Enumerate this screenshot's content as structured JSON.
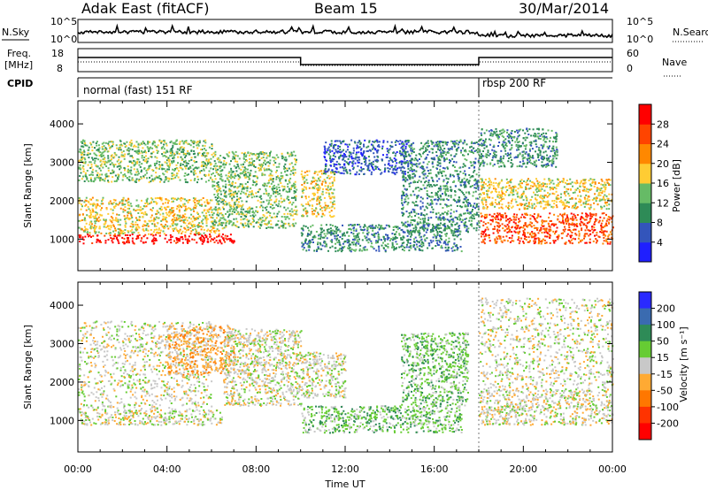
{
  "header": {
    "radar": "Adak East (fitACF)",
    "beam": "Beam 15",
    "date": "30/Mar/2014"
  },
  "noise_panel": {
    "left_label": "N.Sky",
    "left_ticks": [
      "10^5",
      "10^0"
    ],
    "right_label": "N.Search",
    "right_ticks": [
      "10^5",
      "10^0"
    ]
  },
  "freq_panel": {
    "left_label_1": "Freq.",
    "left_label_2": "[MHz]",
    "left_ticks": [
      "18",
      "8"
    ],
    "right_label": "Nave",
    "right_ticks": [
      "60",
      "0"
    ]
  },
  "cpid": {
    "label": "CPID",
    "segments": [
      {
        "text": "normal (fast) 151 RF",
        "start_hour": 0
      },
      {
        "text": "rbsp 200 RF",
        "start_hour": 18
      }
    ]
  },
  "x_axis": {
    "label": "Time UT",
    "ticks": [
      "00:00",
      "04:00",
      "08:00",
      "12:00",
      "16:00",
      "20:00",
      "00:00"
    ]
  },
  "power_colorbar": {
    "label": "Power [dB]",
    "ticks": [
      "4",
      "8",
      "12",
      "16",
      "20",
      "24",
      "28"
    ],
    "colors": [
      "#1f1fff",
      "#3355bb",
      "#2e8b57",
      "#66bb66",
      "#ffcc33",
      "#ff8800",
      "#ff4400",
      "#ff0000"
    ]
  },
  "velocity_colorbar": {
    "label": "Velocity [m s⁻¹]",
    "ticks": [
      "200",
      "100",
      "50",
      "15",
      "-15",
      "-50",
      "-100",
      "-200"
    ],
    "colors": [
      "#2a2aff",
      "#3a6bb0",
      "#2e8b57",
      "#66cc33",
      "#c8c8c8",
      "#ffaa33",
      "#ff7700",
      "#ff3300",
      "#ff0000"
    ]
  },
  "chart_data": [
    {
      "type": "heatmap",
      "title": "",
      "xlabel": "",
      "ylabel": "Slant Range [km]",
      "xlim": [
        0,
        24
      ],
      "ylim": [
        180,
        4600
      ],
      "yticks": [
        "1000",
        "2000",
        "3000",
        "4000"
      ],
      "scatter_bands": [
        {
          "name": "",
          "t0": 0,
          "t1": 7,
          "r0": 900,
          "r1": 1150,
          "level": 7
        },
        {
          "name": "",
          "t0": 0,
          "t1": 6.5,
          "r0": 1150,
          "r1": 1500,
          "level": 4
        },
        {
          "name": "",
          "t0": 0,
          "t1": 6,
          "r0": 1500,
          "r1": 2100,
          "level": 4
        },
        {
          "name": "",
          "t0": 0,
          "t1": 6,
          "r0": 2500,
          "r1": 3600,
          "level": 3
        },
        {
          "name": "",
          "t0": 6,
          "t1": 9.8,
          "r0": 1300,
          "r1": 3300,
          "level": 3
        },
        {
          "name": "",
          "t0": 10,
          "t1": 11.5,
          "r0": 1600,
          "r1": 2800,
          "level": 4
        },
        {
          "name": "",
          "t0": 11,
          "t1": 15,
          "r0": 2700,
          "r1": 3600,
          "level": 1
        },
        {
          "name": "",
          "t0": 10,
          "t1": 17.2,
          "r0": 700,
          "r1": 1400,
          "level": 2
        },
        {
          "name": "",
          "t0": 14.5,
          "t1": 18,
          "r0": 1200,
          "r1": 3600,
          "level": 2
        },
        {
          "name": "",
          "t0": 18,
          "t1": 24,
          "r0": 900,
          "r1": 1700,
          "level": 6
        },
        {
          "name": "",
          "t0": 18,
          "t1": 24,
          "r0": 1800,
          "r1": 2600,
          "level": 4
        },
        {
          "name": "",
          "t0": 18,
          "t1": 21.5,
          "r0": 2900,
          "r1": 3900,
          "level": 2
        }
      ]
    },
    {
      "type": "heatmap",
      "title": "",
      "xlabel": "Time UT",
      "ylabel": "Slant Range [km]",
      "xlim": [
        0,
        24
      ],
      "ylim": [
        180,
        4600
      ],
      "yticks": [
        "1000",
        "2000",
        "3000",
        "4000"
      ],
      "scatter_bands": [
        {
          "name": "",
          "t0": 0,
          "t1": 6.5,
          "r0": 900,
          "r1": 1300,
          "level": 4
        },
        {
          "name": "",
          "t0": 0,
          "t1": 6,
          "r0": 1300,
          "r1": 3600,
          "level": 4
        },
        {
          "name": "",
          "t0": 4,
          "t1": 7,
          "r0": 2200,
          "r1": 3500,
          "level": 5
        },
        {
          "name": "",
          "t0": 6.5,
          "t1": 10,
          "r0": 1400,
          "r1": 3400,
          "level": 4
        },
        {
          "name": "",
          "t0": 10,
          "t1": 12,
          "r0": 1600,
          "r1": 2800,
          "level": 4
        },
        {
          "name": "",
          "t0": 10,
          "t1": 17.2,
          "r0": 700,
          "r1": 1400,
          "level": 3
        },
        {
          "name": "",
          "t0": 14.5,
          "t1": 17.5,
          "r0": 1400,
          "r1": 3300,
          "level": 3
        },
        {
          "name": "",
          "t0": 18,
          "t1": 24,
          "r0": 900,
          "r1": 1800,
          "level": 4
        },
        {
          "name": "",
          "t0": 18,
          "t1": 24,
          "r0": 1800,
          "r1": 4200,
          "level": 4
        }
      ]
    }
  ]
}
